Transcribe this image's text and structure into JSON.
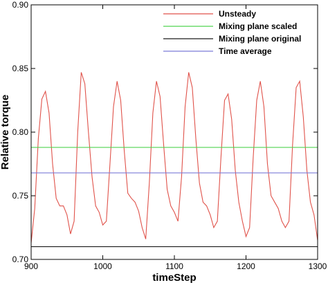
{
  "chart_data": {
    "type": "line",
    "xlabel": "timeStep",
    "ylabel": "Relative torque",
    "xlim": [
      900,
      1300
    ],
    "ylim": [
      0.7,
      0.9
    ],
    "x_ticks": [
      900,
      1000,
      1100,
      1200,
      1300
    ],
    "y_ticks": [
      "0.70",
      "0.75",
      "0.80",
      "0.85",
      "0.90"
    ],
    "legend_position": "top-right",
    "grid": false,
    "series": [
      {
        "name": "Unsteady",
        "color": "#e0524a",
        "x": [
          900,
          905,
          910,
          915,
          920,
          925,
          930,
          935,
          940,
          945,
          950,
          955,
          960,
          965,
          970,
          975,
          980,
          985,
          990,
          995,
          1000,
          1005,
          1010,
          1015,
          1020,
          1025,
          1030,
          1035,
          1040,
          1045,
          1050,
          1055,
          1060,
          1065,
          1070,
          1075,
          1080,
          1085,
          1090,
          1095,
          1100,
          1105,
          1110,
          1115,
          1120,
          1125,
          1130,
          1135,
          1140,
          1145,
          1150,
          1155,
          1160,
          1165,
          1170,
          1175,
          1180,
          1185,
          1190,
          1195,
          1200,
          1205,
          1210,
          1215,
          1220,
          1225,
          1230,
          1235,
          1240,
          1245,
          1250,
          1255,
          1260,
          1265,
          1270,
          1275,
          1280,
          1285,
          1290,
          1295,
          1300
        ],
        "y": [
          0.713,
          0.74,
          0.795,
          0.826,
          0.832,
          0.815,
          0.775,
          0.748,
          0.742,
          0.742,
          0.735,
          0.72,
          0.73,
          0.8,
          0.847,
          0.838,
          0.8,
          0.765,
          0.742,
          0.737,
          0.727,
          0.73,
          0.775,
          0.82,
          0.84,
          0.825,
          0.785,
          0.752,
          0.748,
          0.745,
          0.738,
          0.725,
          0.716,
          0.76,
          0.815,
          0.84,
          0.828,
          0.79,
          0.755,
          0.742,
          0.737,
          0.73,
          0.765,
          0.82,
          0.847,
          0.835,
          0.795,
          0.76,
          0.745,
          0.742,
          0.735,
          0.725,
          0.73,
          0.78,
          0.825,
          0.83,
          0.81,
          0.77,
          0.745,
          0.73,
          0.718,
          0.725,
          0.78,
          0.825,
          0.84,
          0.82,
          0.775,
          0.75,
          0.745,
          0.74,
          0.73,
          0.725,
          0.73,
          0.79,
          0.835,
          0.84,
          0.812,
          0.77,
          0.745,
          0.735,
          0.715
        ]
      },
      {
        "name": "Mixing plane scaled",
        "color": "#4fd34f",
        "x": [
          900,
          1300
        ],
        "y": [
          0.788,
          0.788
        ]
      },
      {
        "name": "Mixing plane original",
        "color": "#1a1a1a",
        "x": [
          900,
          1300
        ],
        "y": [
          0.71,
          0.71
        ]
      },
      {
        "name": "Time average",
        "color": "#7b7bd8",
        "x": [
          900,
          1300
        ],
        "y": [
          0.768,
          0.768
        ]
      }
    ]
  }
}
